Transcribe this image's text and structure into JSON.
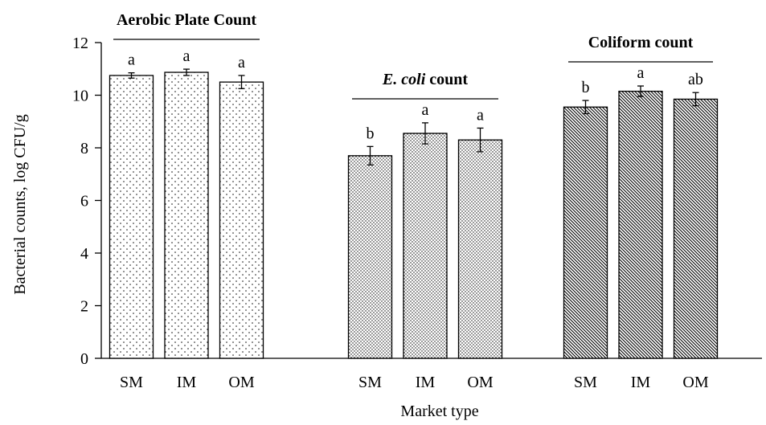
{
  "chart_data": {
    "type": "bar",
    "ylabel": "Bacterial counts, log CFU/g",
    "xlabel": "Market type",
    "ylim": [
      0,
      12
    ],
    "yticks": [
      0,
      2,
      4,
      6,
      8,
      10,
      12
    ],
    "groups": [
      {
        "title": "Aerobic Plate Count",
        "title_parts": [
          {
            "text": "Aerobic Plate Count",
            "italic": false
          }
        ],
        "pattern": "sparse-dots",
        "categories": [
          "SM",
          "IM",
          "OM"
        ],
        "values": [
          10.75,
          10.87,
          10.5
        ],
        "errors": [
          0.1,
          0.12,
          0.25
        ],
        "letters": [
          "a",
          "a",
          "a"
        ]
      },
      {
        "title": "E. coli count",
        "title_parts": [
          {
            "text": "E. coli",
            "italic": true
          },
          {
            "text": " count",
            "italic": false
          }
        ],
        "pattern": "dense-dots",
        "categories": [
          "SM",
          "IM",
          "OM"
        ],
        "values": [
          7.7,
          8.55,
          8.3
        ],
        "errors": [
          0.35,
          0.4,
          0.45
        ],
        "letters": [
          "b",
          "a",
          "a"
        ]
      },
      {
        "title": "Coliform count",
        "title_parts": [
          {
            "text": "Coliform count",
            "italic": false
          }
        ],
        "pattern": "diagonal-hatch",
        "categories": [
          "SM",
          "IM",
          "OM"
        ],
        "values": [
          9.55,
          10.15,
          9.85
        ],
        "errors": [
          0.25,
          0.2,
          0.25
        ],
        "letters": [
          "b",
          "a",
          "ab"
        ]
      }
    ],
    "grid": false,
    "legend": "none"
  }
}
